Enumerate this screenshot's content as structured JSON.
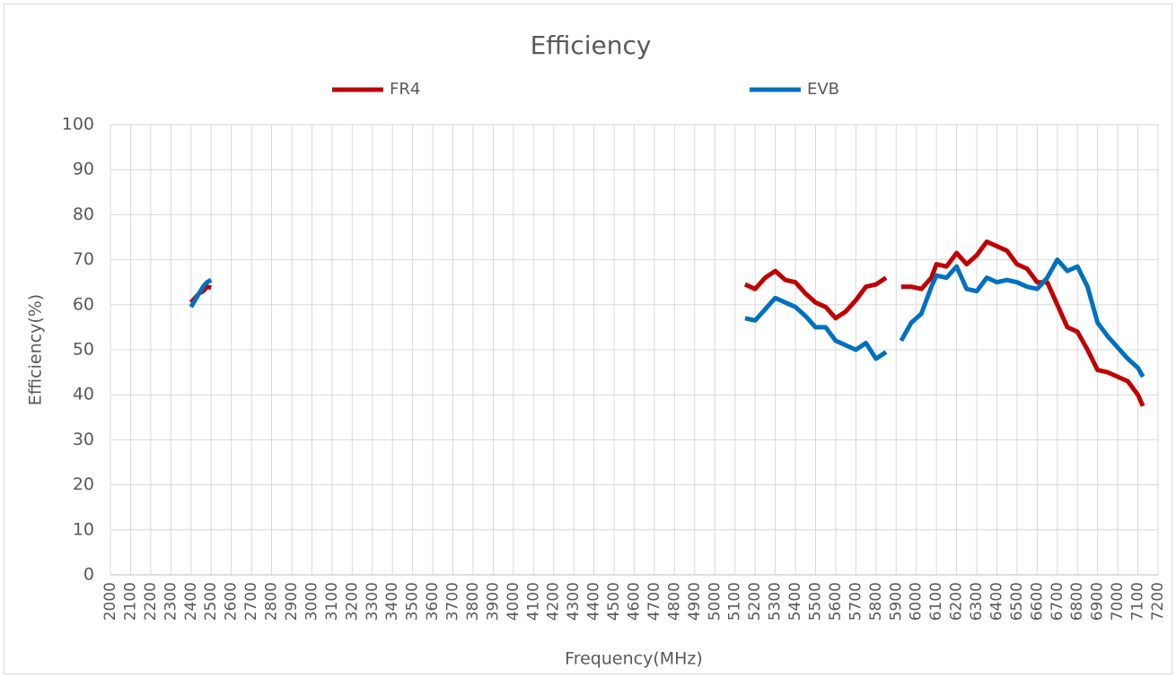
{
  "chart_data": {
    "type": "line",
    "title": "Efficiency",
    "x_label": "Frequency(MHz)",
    "y_label": "Efficiency(%)",
    "x": [
      2400,
      2420,
      2440,
      2460,
      2480,
      2500,
      3800,
      5150,
      5200,
      5250,
      5300,
      5350,
      5400,
      5450,
      5500,
      5550,
      5600,
      5650,
      5700,
      5750,
      5800,
      5850,
      5890,
      5925,
      5975,
      6025,
      6075,
      6100,
      6150,
      6200,
      6250,
      6300,
      6350,
      6400,
      6450,
      6500,
      6550,
      6600,
      6650,
      6700,
      6750,
      6800,
      6850,
      6900,
      6950,
      7000,
      7050,
      7100,
      7125
    ],
    "series": [
      {
        "name": "FR4",
        "color": "#c00000",
        "values": [
          60.5,
          61.5,
          62.5,
          63,
          64,
          63.8,
          null,
          64.5,
          63.5,
          66,
          67.5,
          65.5,
          65,
          62.5,
          60.5,
          59.5,
          57,
          58.5,
          61,
          64,
          64.5,
          66,
          null,
          64,
          64,
          63.5,
          66,
          69,
          68.5,
          71.5,
          69,
          71,
          74,
          73,
          72,
          69,
          68,
          65,
          65,
          60,
          55,
          54,
          50,
          45.5,
          45,
          44,
          43,
          40,
          37.5
        ]
      },
      {
        "name": "EVB",
        "color": "#0070c0",
        "values": [
          59.5,
          61,
          62.5,
          64,
          65,
          65.5,
          null,
          57,
          56.5,
          59,
          61.5,
          60.5,
          59.5,
          57.5,
          55,
          55,
          52,
          51,
          50,
          51.5,
          48,
          49.5,
          null,
          52,
          56,
          58,
          64,
          66.5,
          66,
          68.5,
          63.5,
          63,
          66,
          65,
          65.5,
          65,
          64,
          63.5,
          66,
          70,
          67.5,
          68.5,
          64,
          56,
          53,
          50.5,
          48,
          46,
          44
        ]
      }
    ],
    "xlim": [
      2000,
      7200
    ],
    "xticks": [
      2000,
      2100,
      2200,
      2300,
      2400,
      2500,
      2600,
      2700,
      2800,
      2900,
      3000,
      3100,
      3200,
      3300,
      3400,
      3500,
      3600,
      3700,
      3800,
      3900,
      4000,
      4100,
      4200,
      4300,
      4400,
      4500,
      4600,
      4700,
      4800,
      4900,
      5000,
      5100,
      5200,
      5300,
      5400,
      5500,
      5600,
      5700,
      5800,
      5900,
      6000,
      6100,
      6200,
      6300,
      6400,
      6500,
      6600,
      6700,
      6800,
      6900,
      7000,
      7100,
      7200
    ],
    "ylim": [
      0,
      100
    ],
    "yticks": [
      0,
      10,
      20,
      30,
      40,
      50,
      60,
      70,
      80,
      90,
      100
    ],
    "grid": true,
    "legend": "top"
  }
}
